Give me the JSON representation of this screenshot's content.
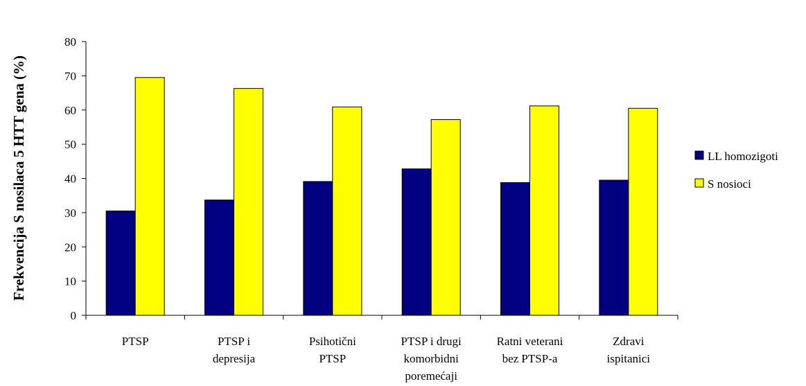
{
  "chart_data": {
    "type": "bar",
    "title": "",
    "xlabel": "",
    "ylabel": "Frekvencija S nosilaca 5 HTT gena (%)",
    "ylim": [
      0,
      80
    ],
    "yticks": [
      0,
      10,
      20,
      30,
      40,
      50,
      60,
      70,
      80
    ],
    "grid": false,
    "legend_position": "right",
    "categories": [
      [
        "PTSP"
      ],
      [
        "PTSP i",
        "depresija"
      ],
      [
        "Psihotični",
        "PTSP"
      ],
      [
        "PTSP i drugi",
        "komorbidni",
        "poremećaji"
      ],
      [
        "Ratni veterani",
        "bez PTSP-a"
      ],
      [
        "Zdravi",
        "ispitanici"
      ]
    ],
    "series": [
      {
        "name": "LL homozigoti",
        "color": "#000080",
        "values": [
          30.5,
          33.7,
          39.1,
          42.8,
          38.8,
          39.5
        ]
      },
      {
        "name": "S nosioci",
        "color": "#ffff00",
        "values": [
          69.5,
          66.3,
          60.9,
          57.2,
          61.2,
          60.5
        ]
      }
    ]
  }
}
